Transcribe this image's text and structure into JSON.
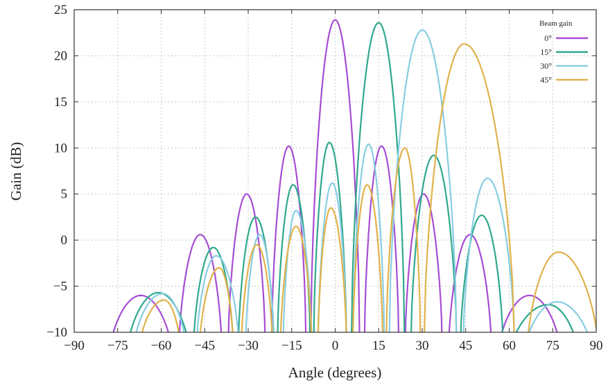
{
  "chart_data": {
    "type": "line",
    "xlabel": "Angle (degrees)",
    "ylabel": "Gain (dB)",
    "xlim": [
      -90,
      90
    ],
    "ylim": [
      -10,
      25
    ],
    "xticks": [
      -90,
      -75,
      -60,
      -45,
      -30,
      -15,
      0,
      15,
      30,
      45,
      60,
      75,
      90
    ],
    "yticks": [
      -10,
      -5,
      0,
      5,
      10,
      15,
      20,
      25
    ],
    "xtick_labels": [
      "−90",
      "−75",
      "−60",
      "−45",
      "−30",
      "−15",
      "0",
      "15",
      "30",
      "45",
      "60",
      "75",
      "90"
    ],
    "ytick_labels": [
      "−10",
      "−5",
      "0",
      "5",
      "10",
      "15",
      "20",
      "25"
    ],
    "grid": true,
    "legend": {
      "title": "Beam gain",
      "position": "top-right"
    },
    "series": [
      {
        "name": "0°",
        "color": "#a64dd4",
        "lobes": [
          {
            "start": -78,
            "end": -56,
            "peak_x": -67,
            "peak_y": -6
          },
          {
            "start": -54,
            "end": -39,
            "peak_x": -46.5,
            "peak_y": 0.6
          },
          {
            "start": -37,
            "end": -24,
            "peak_x": -30.5,
            "peak_y": 5
          },
          {
            "start": -22,
            "end": -10,
            "peak_x": -16,
            "peak_y": 10.2
          },
          {
            "start": -8.5,
            "end": 8.5,
            "peak_x": 0,
            "peak_y": 23.9
          },
          {
            "start": 10,
            "end": 22,
            "peak_x": 16,
            "peak_y": 10.2
          },
          {
            "start": 24,
            "end": 37,
            "peak_x": 30.5,
            "peak_y": 5
          },
          {
            "start": 39,
            "end": 54,
            "peak_x": 46.5,
            "peak_y": 0.6
          },
          {
            "start": 56,
            "end": 78,
            "peak_x": 67,
            "peak_y": -6
          }
        ]
      },
      {
        "name": "15°",
        "color": "#2fa88c",
        "lobes": [
          {
            "start": -72,
            "end": -50,
            "peak_x": -61,
            "peak_y": -5.7
          },
          {
            "start": -49,
            "end": -35,
            "peak_x": -42,
            "peak_y": -0.8
          },
          {
            "start": -33.5,
            "end": -21,
            "peak_x": -27.5,
            "peak_y": 2.5
          },
          {
            "start": -20,
            "end": -8.5,
            "peak_x": -14.5,
            "peak_y": 6
          },
          {
            "start": -7.5,
            "end": 4,
            "peak_x": -2,
            "peak_y": 10.6
          },
          {
            "start": 5.5,
            "end": 24,
            "peak_x": 15,
            "peak_y": 23.6
          },
          {
            "start": 26,
            "end": 42,
            "peak_x": 34,
            "peak_y": 9.2
          },
          {
            "start": 43,
            "end": 58,
            "peak_x": 50.5,
            "peak_y": 2.7
          },
          {
            "start": 60,
            "end": 84,
            "peak_x": 73.5,
            "peak_y": -7
          }
        ]
      },
      {
        "name": "30°",
        "color": "#88cde2",
        "lobes": [
          {
            "start": -70,
            "end": -51,
            "peak_x": -59.5,
            "peak_y": -5.8
          },
          {
            "start": -48,
            "end": -33,
            "peak_x": -41,
            "peak_y": -1.7
          },
          {
            "start": -31,
            "end": -21,
            "peak_x": -26,
            "peak_y": 0.6
          },
          {
            "start": -18,
            "end": -8,
            "peak_x": -13.5,
            "peak_y": 3.2
          },
          {
            "start": -6,
            "end": 4,
            "peak_x": -1,
            "peak_y": 6.2
          },
          {
            "start": 6,
            "end": 17,
            "peak_x": 11.5,
            "peak_y": 10.4
          },
          {
            "start": 18.5,
            "end": 42,
            "peak_x": 30,
            "peak_y": 22.8
          },
          {
            "start": 44,
            "end": 62,
            "peak_x": 52.5,
            "peak_y": 6.7
          },
          {
            "start": 65,
            "end": 89,
            "peak_x": 76.5,
            "peak_y": -6.7
          }
        ]
      },
      {
        "name": "45°",
        "color": "#e0b24a",
        "lobes": [
          {
            "start": -68,
            "end": -53,
            "peak_x": -59,
            "peak_y": -6.5
          },
          {
            "start": -47,
            "end": -35,
            "peak_x": -40,
            "peak_y": -3
          },
          {
            "start": -32.5,
            "end": -21.5,
            "peak_x": -27,
            "peak_y": -0.5
          },
          {
            "start": -19,
            "end": -8,
            "peak_x": -13.5,
            "peak_y": 1.5
          },
          {
            "start": -6,
            "end": 4,
            "peak_x": -1.5,
            "peak_y": 3.5
          },
          {
            "start": 6,
            "end": 16.5,
            "peak_x": 11,
            "peak_y": 6
          },
          {
            "start": 17.5,
            "end": 29.5,
            "peak_x": 24,
            "peak_y": 10
          },
          {
            "start": 30.5,
            "end": 62,
            "peak_x": 44.5,
            "peak_y": 21.3
          },
          {
            "start": 66,
            "end": 91,
            "peak_x": 77,
            "peak_y": -1.3
          }
        ]
      }
    ]
  }
}
